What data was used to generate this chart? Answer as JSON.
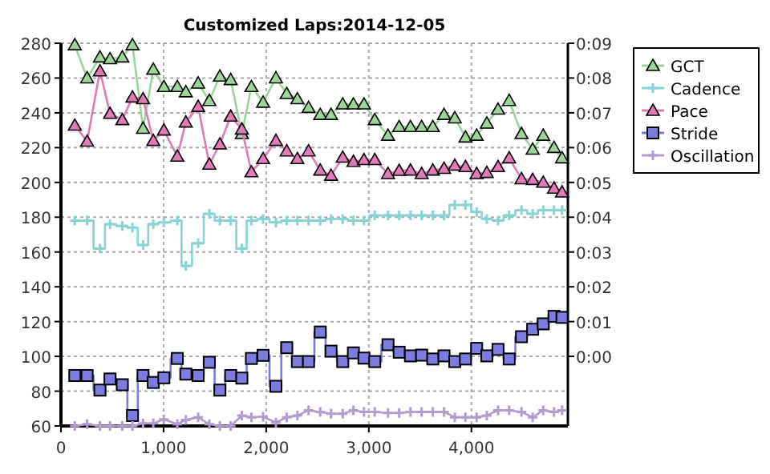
{
  "chart_data": {
    "type": "line",
    "title": "Customized Laps:2014-12-05",
    "x": [
      135,
      255,
      380,
      478,
      598,
      697,
      800,
      900,
      1003,
      1134,
      1217,
      1337,
      1446,
      1549,
      1654,
      1763,
      1856,
      1970,
      2095,
      2200,
      2304,
      2413,
      2527,
      2632,
      2746,
      2850,
      2953,
      3058,
      3187,
      3296,
      3406,
      3515,
      3624,
      3733,
      3838,
      3942,
      4051,
      4150,
      4259,
      4368,
      4488,
      4597,
      4700,
      4805,
      4883
    ],
    "xlim": [
      0,
      4940
    ],
    "xticks": [
      0,
      {
        "value": 1000,
        "label": "1,000"
      },
      {
        "value": 2000,
        "label": "2,000"
      },
      {
        "value": 3000,
        "label": "3,000"
      },
      {
        "value": 4000,
        "label": "4,000"
      }
    ],
    "ylim": [
      60,
      280
    ],
    "yticks": [
      60,
      80,
      100,
      120,
      140,
      160,
      180,
      200,
      220,
      240,
      260,
      280
    ],
    "y2lim": [
      -2,
      9
    ],
    "y2ticks": [
      {
        "value": 0,
        "label": "0:00"
      },
      {
        "value": 1,
        "label": "0:01"
      },
      {
        "value": 2,
        "label": "0:02"
      },
      {
        "value": 3,
        "label": "0:03"
      },
      {
        "value": 4,
        "label": "0:04"
      },
      {
        "value": 5,
        "label": "0:05"
      },
      {
        "value": 6,
        "label": "0:06"
      },
      {
        "value": 7,
        "label": "0:07"
      },
      {
        "value": 8,
        "label": "0:08"
      },
      {
        "value": 9,
        "label": "0:09"
      }
    ],
    "grid": true,
    "legend": "right",
    "series": [
      {
        "name": "GCT",
        "color": "#9dd49a",
        "marker": "triangle",
        "values": [
          279,
          260,
          272,
          271,
          272,
          279,
          231,
          265,
          255,
          255,
          252,
          257,
          247,
          261,
          259,
          228,
          255,
          246,
          260,
          251,
          248,
          243,
          239,
          239,
          245,
          245,
          245,
          236,
          227,
          232,
          232,
          232,
          232,
          239,
          237,
          226,
          227,
          234,
          242,
          247,
          228,
          219,
          227,
          220,
          214
        ]
      },
      {
        "name": "Cadence",
        "type": "step",
        "color": "#86d4d4",
        "marker": "cross",
        "values": [
          178,
          178,
          162,
          176,
          175,
          174,
          164,
          176,
          177,
          178,
          152,
          165,
          182,
          178,
          178,
          162,
          178,
          179,
          177,
          178,
          178,
          178,
          178,
          179,
          179,
          178,
          178,
          181,
          181,
          181,
          181,
          181,
          181,
          181,
          187,
          187,
          183,
          179,
          178,
          181,
          184,
          182,
          184,
          184,
          184
        ]
      },
      {
        "name": "Pace",
        "axis": "y2",
        "color": "#e07ab8",
        "marker": "triangle",
        "values": [
          6.64,
          6.18,
          8.2,
          6.98,
          6.8,
          7.45,
          7.4,
          6.2,
          6.5,
          5.75,
          6.73,
          7.18,
          5.52,
          6.1,
          6.9,
          6.53,
          5.3,
          5.68,
          6.2,
          5.9,
          5.68,
          5.9,
          5.35,
          5.2,
          5.72,
          5.6,
          5.65,
          5.65,
          5.25,
          5.34,
          5.35,
          5.25,
          5.35,
          5.4,
          5.49,
          5.45,
          5.25,
          5.28,
          5.45,
          5.7,
          5.1,
          5.08,
          5,
          4.83,
          4.72
        ]
      },
      {
        "name": "Stride",
        "type": "step",
        "color": "#7b7be0",
        "marker": "square",
        "values": [
          89,
          89,
          80.6,
          87,
          83.7,
          66,
          89,
          85,
          87.7,
          98.8,
          89.8,
          89,
          96.6,
          80.6,
          89,
          87.5,
          98.8,
          100.6,
          82.8,
          105,
          97,
          97,
          114,
          103,
          97,
          102,
          99,
          97,
          106.7,
          102.4,
          100.3,
          100.7,
          98.5,
          100.3,
          97,
          98.5,
          104.6,
          100.3,
          104,
          98.5,
          111.3,
          115.6,
          118.7,
          123,
          122.4
        ]
      },
      {
        "name": "Oscillation",
        "color": "#b39ccf",
        "marker": "cross",
        "values": [
          60,
          61,
          60,
          60,
          60,
          60,
          61.5,
          61.5,
          63.8,
          61,
          63.5,
          65,
          61,
          60,
          60,
          66,
          65,
          65.3,
          62,
          65,
          66,
          69,
          68,
          67,
          67,
          69,
          68,
          68,
          67.5,
          67.5,
          68,
          68,
          68,
          68,
          65,
          65,
          65,
          66,
          69,
          69,
          68,
          65,
          69,
          68,
          69
        ]
      }
    ]
  }
}
